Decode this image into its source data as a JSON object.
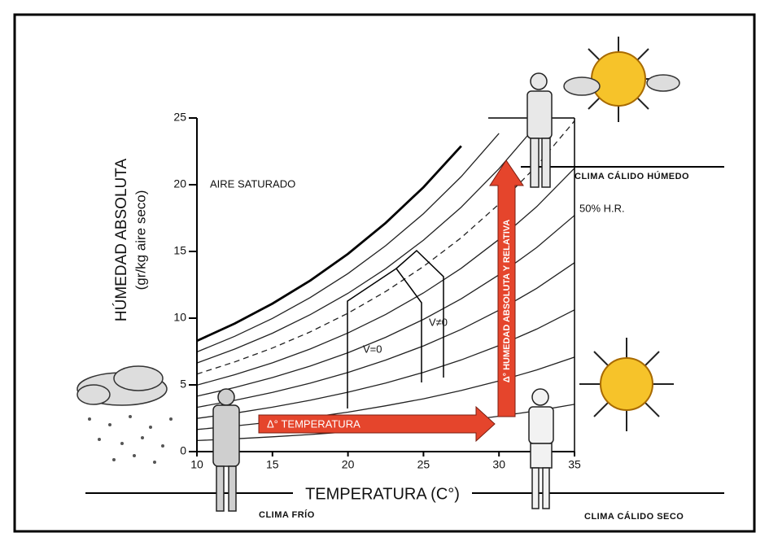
{
  "chart_data": {
    "type": "line",
    "xlabel": "TEMPERATURA (C°)",
    "ylabel": [
      "HÚMEDAD ABSOLUTA",
      "(gr/kg aire seco)"
    ],
    "xlim": [
      10,
      35
    ],
    "ylim": [
      0,
      25
    ],
    "xticks": [
      10,
      15,
      20,
      25,
      30,
      35
    ],
    "yticks": [
      0,
      5,
      10,
      15,
      20,
      25
    ],
    "series": [
      {
        "color": "#000000",
        "dash": false,
        "x": [
          10,
          12.5,
          15,
          17.5,
          20,
          22.5,
          25,
          27.5
        ],
        "values": [
          8.3,
          9.6,
          11.09,
          12.82,
          14.82,
          17.14,
          19.81,
          22.9
        ]
      },
      {
        "color": "#222222",
        "dash": false,
        "x": [
          10,
          12.5,
          15,
          17.5,
          20,
          22.5,
          25,
          27.5,
          30
        ],
        "values": [
          7.47,
          8.64,
          9.98,
          11.54,
          13.34,
          15.43,
          17.83,
          20.61,
          23.85
        ]
      },
      {
        "color": "#222222",
        "dash": false,
        "x": [
          10,
          12.5,
          15,
          17.5,
          20,
          22.5,
          25,
          27.5,
          30,
          32.5
        ],
        "values": [
          6.64,
          7.68,
          8.87,
          10.26,
          11.86,
          13.71,
          15.85,
          18.32,
          21.2,
          24.48
        ]
      },
      {
        "color": "#222222",
        "dash": true,
        "x": [
          10,
          12.5,
          15,
          17.5,
          20,
          22.5,
          25,
          27.5,
          30,
          32.5,
          35
        ],
        "values": [
          5.81,
          6.72,
          7.76,
          8.97,
          10.37,
          12.0,
          13.87,
          16.03,
          18.55,
          21.42,
          24.78
        ]
      },
      {
        "color": "#222222",
        "dash": false,
        "x": [
          10,
          12.5,
          15,
          17.5,
          20,
          22.5,
          25,
          27.5,
          30,
          32.5,
          35
        ],
        "values": [
          4.98,
          5.76,
          6.65,
          7.69,
          8.89,
          10.28,
          11.89,
          13.74,
          15.9,
          18.36,
          21.24
        ]
      },
      {
        "color": "#222222",
        "dash": false,
        "x": [
          10,
          12.5,
          15,
          17.5,
          20,
          22.5,
          25,
          27.5,
          30,
          32.5,
          35
        ],
        "values": [
          4.15,
          4.8,
          5.55,
          6.41,
          7.41,
          8.57,
          9.91,
          11.45,
          13.25,
          15.3,
          17.7
        ]
      },
      {
        "color": "#222222",
        "dash": false,
        "x": [
          10,
          12.5,
          15,
          17.5,
          20,
          22.5,
          25,
          27.5,
          30,
          32.5,
          35
        ],
        "values": [
          3.32,
          3.84,
          4.44,
          5.13,
          5.93,
          6.86,
          7.92,
          9.16,
          10.6,
          12.24,
          14.16
        ]
      },
      {
        "color": "#222222",
        "dash": false,
        "x": [
          10,
          12.5,
          15,
          17.5,
          20,
          22.5,
          25,
          27.5,
          30,
          32.5,
          35
        ],
        "values": [
          2.49,
          2.88,
          3.33,
          3.85,
          4.45,
          5.14,
          5.94,
          6.87,
          7.95,
          9.18,
          10.62
        ]
      },
      {
        "color": "#222222",
        "dash": false,
        "x": [
          10,
          12.5,
          15,
          17.5,
          20,
          22.5,
          25,
          27.5,
          30,
          32.5,
          35
        ],
        "values": [
          1.66,
          1.92,
          2.22,
          2.56,
          2.96,
          3.43,
          3.96,
          4.58,
          5.3,
          6.12,
          7.08
        ]
      },
      {
        "color": "#222222",
        "dash": false,
        "x": [
          10,
          12.5,
          15,
          17.5,
          20,
          22.5,
          25,
          27.5,
          30,
          32.5,
          35
        ],
        "values": [
          0.83,
          0.96,
          1.11,
          1.28,
          1.48,
          1.71,
          1.98,
          2.29,
          2.65,
          3.06,
          3.54
        ]
      }
    ],
    "annotations": [
      "AIRE SATURADO",
      "50% H.R.",
      "V=0",
      "V≠0",
      "Δ° TEMPERATURA",
      "Δ° HUMEDAD ABSOLUTA Y RELATIVA",
      "CLIMA CÁLIDO HÚMEDO",
      "CLIMA FRÍO",
      "CLIMA CÁLIDO SECO"
    ]
  }
}
